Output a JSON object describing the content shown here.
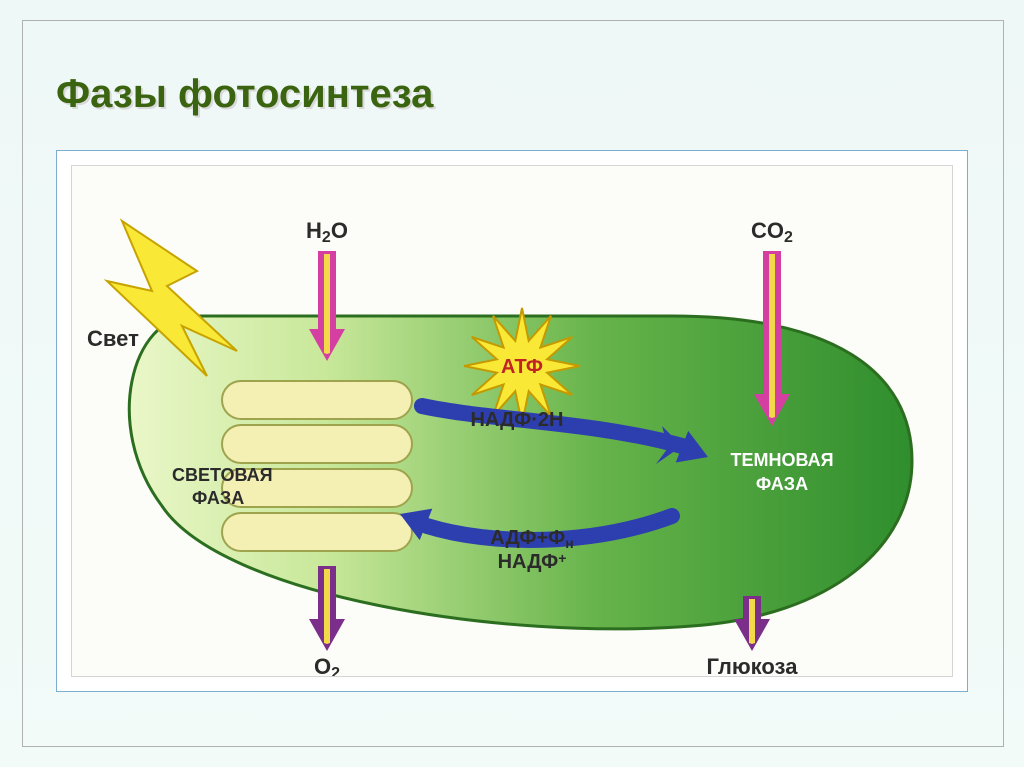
{
  "title": "Фазы фотосинтеза",
  "figure": {
    "type": "diagram",
    "background": "#fcfcf8",
    "chloroplast": {
      "gradient_from": "#eaf7c8",
      "gradient_to": "#2f8e2d",
      "border": "#2c6e1f",
      "border_width": 3
    },
    "thylakoid": {
      "fill": "#f4f0b4",
      "stroke": "#9fa34e",
      "count": 4
    },
    "light_bolt": {
      "fill": "#f9e836",
      "stroke": "#c7a300"
    },
    "atp_star": {
      "fill": "#f9e836",
      "stroke": "#c49a00",
      "label": "АТФ",
      "label_color": "#c02424"
    },
    "arrows": {
      "pink": "#d63fa2",
      "yellow": "#f1d94a",
      "purple": "#7b2e8a",
      "blue": "#2d3fae"
    },
    "labels": {
      "light": "Свет",
      "h2o": "H",
      "h2o_sub": "2",
      "h2o_tail": "O",
      "co2": "CO",
      "co2_sub": "2",
      "o2": "O",
      "o2_sub": "2",
      "glucose": "Глюкоза",
      "light_phase_1": "СВЕТОВАЯ",
      "light_phase_2": "ФАЗА",
      "dark_phase_1": "ТЕМНОВАЯ",
      "dark_phase_2": "ФАЗА",
      "nadph": "НАДФ·2Н",
      "adp": "АДФ+Ф",
      "adp_sub": "н",
      "nadp": "НАДФ",
      "nadp_sup": "+",
      "label_color": "#2b2b2b",
      "phase_light_color": "#2b2b2b",
      "phase_dark_color": "#ffffff",
      "fontsize_outer": 22,
      "fontsize_inner": 20,
      "fontsize_phase": 18
    }
  }
}
